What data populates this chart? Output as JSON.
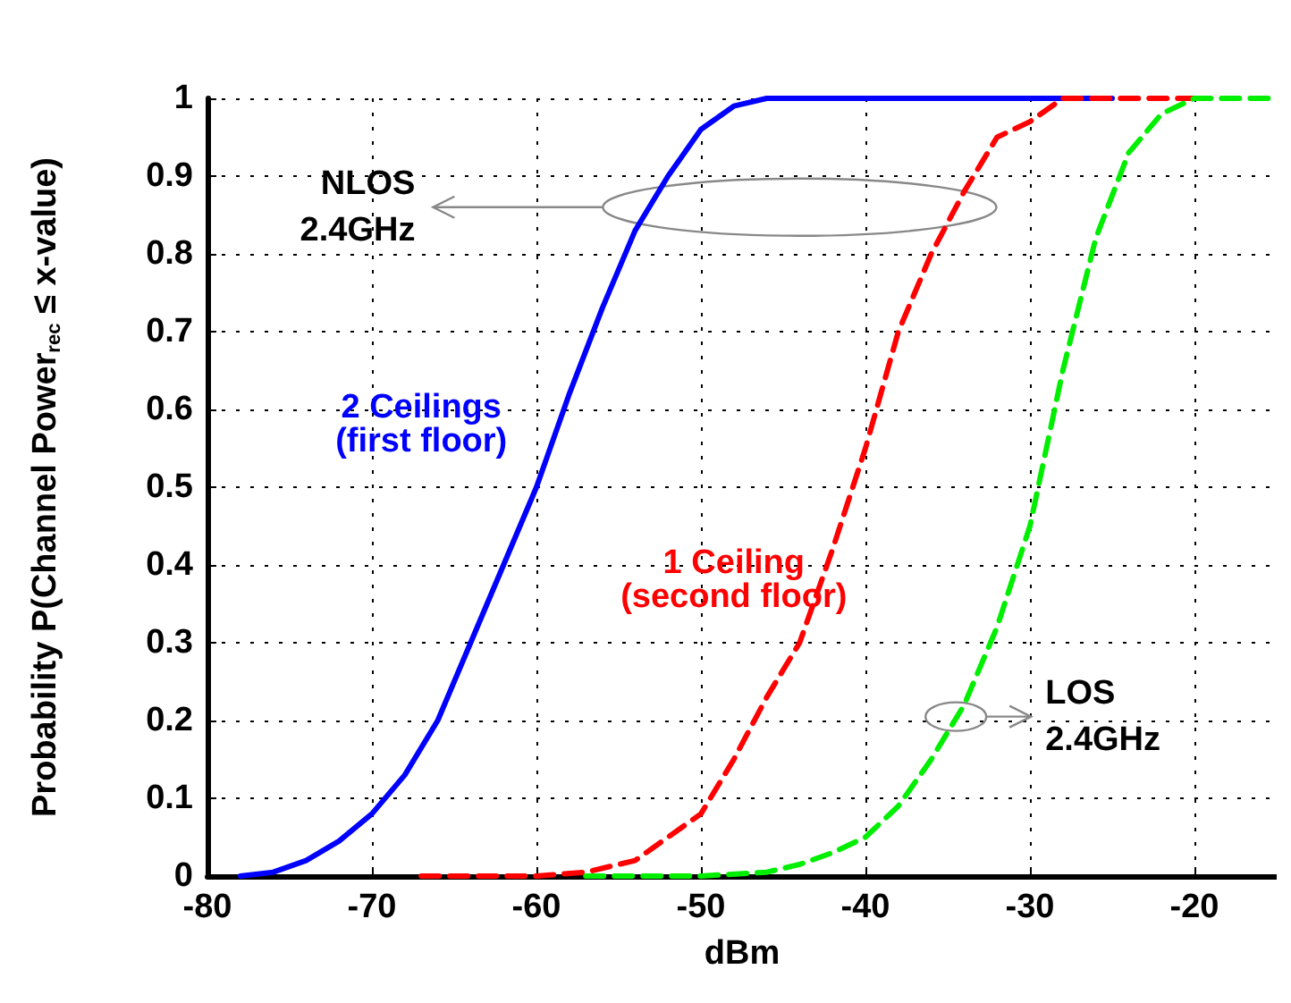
{
  "chart_data": {
    "type": "line",
    "xlabel": "dBm",
    "ylabel": "Probability P(Channel Power$_{rec}$ ≤ x-value)",
    "xlim": [
      -80,
      -15
    ],
    "xticks": [
      -80,
      -70,
      -60,
      -50,
      -40,
      -30,
      -20
    ],
    "ylim": [
      0,
      1
    ],
    "yticks": [
      0,
      0.1,
      0.2,
      0.3,
      0.4,
      0.5,
      0.6,
      0.7,
      0.8,
      0.9,
      1
    ],
    "grid": true,
    "legend": false,
    "marker": "none",
    "series": [
      {
        "name": "2 Ceilings\n(first floor)",
        "color": "#0000ff",
        "line_style": "solid",
        "x": [
          -78,
          -76,
          -74,
          -72,
          -70,
          -68,
          -66,
          -64,
          -62,
          -60,
          -58,
          -56,
          -54,
          -52,
          -50,
          -48,
          -46,
          -25
        ],
        "values": [
          0,
          0.005,
          0.02,
          0.045,
          0.08,
          0.13,
          0.2,
          0.3,
          0.4,
          0.5,
          0.62,
          0.73,
          0.83,
          0.9,
          0.96,
          0.99,
          1,
          1
        ]
      },
      {
        "name": "1 Ceiling\n(second floor)",
        "color": "#ff0000",
        "line_style": "dashed",
        "x": [
          -67,
          -60,
          -57,
          -54,
          -52,
          -50,
          -48,
          -46,
          -44,
          -42,
          -40,
          -38,
          -36,
          -34,
          -32,
          -30,
          -28,
          -20
        ],
        "values": [
          0,
          0,
          0.005,
          0.02,
          0.05,
          0.08,
          0.15,
          0.23,
          0.3,
          0.42,
          0.55,
          0.7,
          0.8,
          0.88,
          0.95,
          0.97,
          1,
          1
        ]
      },
      {
        "name": null,
        "color": "#00ee00",
        "line_style": "dashed",
        "x": [
          -57,
          -50,
          -46,
          -44,
          -42,
          -40,
          -38,
          -36,
          -34,
          -32,
          -30,
          -29,
          -28,
          -26,
          -24,
          -22,
          -20,
          -15
        ],
        "values": [
          0,
          0,
          0.005,
          0.015,
          0.03,
          0.05,
          0.09,
          0.15,
          0.22,
          0.32,
          0.45,
          0.55,
          0.65,
          0.82,
          0.93,
          0.98,
          1,
          1
        ]
      }
    ],
    "annotations": [
      "NLOS\n2.4GHz",
      "LOS\n2.4GHz"
    ]
  }
}
